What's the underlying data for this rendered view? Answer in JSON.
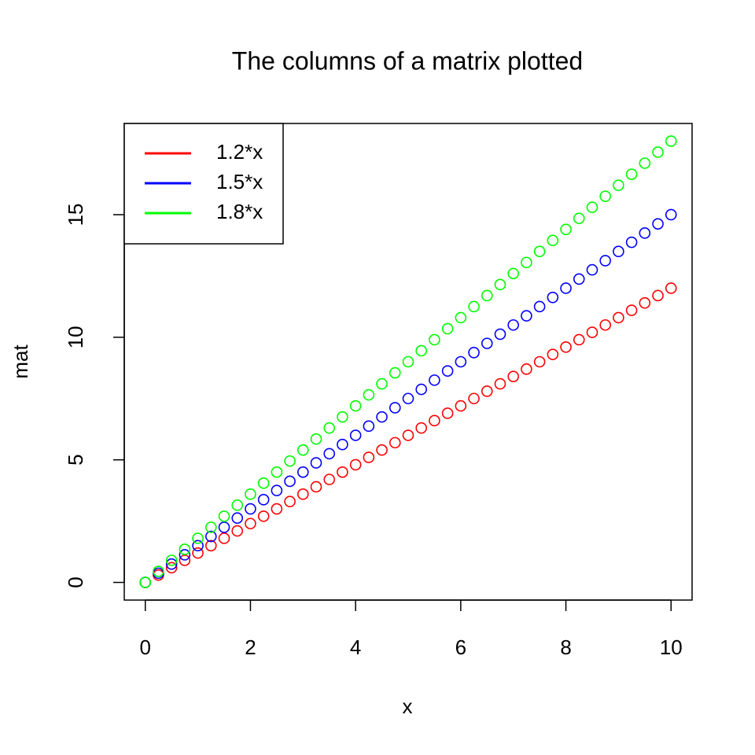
{
  "chart_data": {
    "type": "scatter",
    "title": "The columns of a matrix plotted",
    "xlabel": "x",
    "ylabel": "mat",
    "x": [
      0,
      0.25,
      0.5,
      0.75,
      1,
      1.25,
      1.5,
      1.75,
      2,
      2.25,
      2.5,
      2.75,
      3,
      3.25,
      3.5,
      3.75,
      4,
      4.25,
      4.5,
      4.75,
      5,
      5.25,
      5.5,
      5.75,
      6,
      6.25,
      6.5,
      6.75,
      7,
      7.25,
      7.5,
      7.75,
      8,
      8.25,
      8.5,
      8.75,
      9,
      9.25,
      9.5,
      9.75,
      10
    ],
    "series": [
      {
        "name": "1.2*x",
        "color": "#ff0000",
        "values": [
          0,
          0.3,
          0.6,
          0.9,
          1.2,
          1.5,
          1.8,
          2.1,
          2.4,
          2.7,
          3,
          3.3,
          3.6,
          3.9,
          4.2,
          4.5,
          4.8,
          5.1,
          5.4,
          5.7,
          6,
          6.3,
          6.6,
          6.9,
          7.2,
          7.5,
          7.8,
          8.1,
          8.4,
          8.7,
          9,
          9.3,
          9.6,
          9.9,
          10.2,
          10.5,
          10.8,
          11.1,
          11.4,
          11.7,
          12
        ]
      },
      {
        "name": "1.5*x",
        "color": "#0000ff",
        "values": [
          0,
          0.375,
          0.75,
          1.125,
          1.5,
          1.875,
          2.25,
          2.625,
          3,
          3.375,
          3.75,
          4.125,
          4.5,
          4.875,
          5.25,
          5.625,
          6,
          6.375,
          6.75,
          7.125,
          7.5,
          7.875,
          8.25,
          8.625,
          9,
          9.375,
          9.75,
          10.125,
          10.5,
          10.875,
          11.25,
          11.625,
          12,
          12.375,
          12.75,
          13.125,
          13.5,
          13.875,
          14.25,
          14.625,
          15
        ]
      },
      {
        "name": "1.8*x",
        "color": "#00ff00",
        "values": [
          0,
          0.45,
          0.9,
          1.35,
          1.8,
          2.25,
          2.7,
          3.15,
          3.6,
          4.05,
          4.5,
          4.95,
          5.4,
          5.85,
          6.3,
          6.75,
          7.2,
          7.65,
          8.1,
          8.55,
          9,
          9.45,
          9.9,
          10.35,
          10.8,
          11.25,
          11.7,
          12.15,
          12.6,
          13.05,
          13.5,
          13.95,
          14.4,
          14.85,
          15.3,
          15.75,
          16.2,
          16.65,
          17.1,
          17.55,
          18
        ]
      }
    ],
    "xlim": [
      -0.4,
      10.4
    ],
    "ylim": [
      -0.72,
      18.72
    ],
    "xticks": [
      0,
      2,
      4,
      6,
      8,
      10
    ],
    "yticks": [
      0,
      5,
      10,
      15
    ],
    "legend": "topleft",
    "grid": false
  }
}
